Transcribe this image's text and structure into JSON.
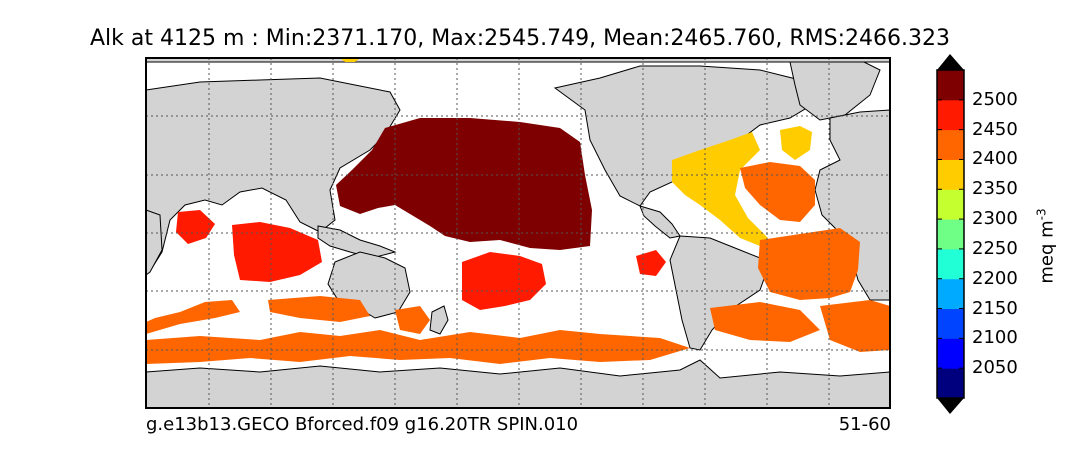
{
  "title": "Alk at 4125 m : Min:2371.170, Max:2545.749, Mean:2465.760, RMS:2466.323",
  "caption_left": "g.e13b13.GECO Bforced.f09 g16.20TR SPIN.010",
  "caption_right": "51-60",
  "colorbar": {
    "units_base": "meq m",
    "units_exp": "-3",
    "tick_labels": [
      "2050",
      "2100",
      "2150",
      "2200",
      "2250",
      "2300",
      "2350",
      "2400",
      "2450",
      "2500"
    ],
    "colors": [
      "#00007f",
      "#0000ff",
      "#0044ff",
      "#00aaff",
      "#20ffd6",
      "#70ff86",
      "#c6ff30",
      "#ffcc00",
      "#ff6600",
      "#ff1a00",
      "#7f0000"
    ],
    "extend": "both"
  },
  "map": {
    "land_color": "#d3d3d3",
    "ocean_missing_color": "#ffffff",
    "gridlines": "dotted"
  }
}
